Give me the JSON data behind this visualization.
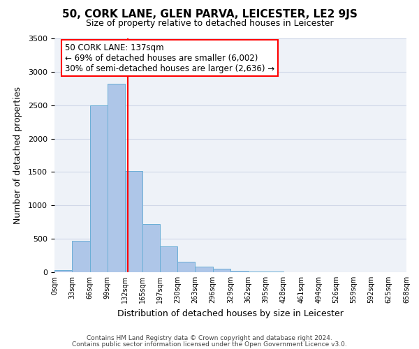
{
  "title1": "50, CORK LANE, GLEN PARVA, LEICESTER, LE2 9JS",
  "title2": "Size of property relative to detached houses in Leicester",
  "xlabel": "Distribution of detached houses by size in Leicester",
  "ylabel": "Number of detached properties",
  "bin_edges": [
    0,
    33,
    66,
    99,
    132,
    165,
    197,
    230,
    263,
    296,
    329,
    362,
    395,
    428,
    461,
    494,
    526,
    559,
    592,
    625,
    658
  ],
  "bin_labels": [
    "0sqm",
    "33sqm",
    "66sqm",
    "99sqm",
    "132sqm",
    "165sqm",
    "197sqm",
    "230sqm",
    "263sqm",
    "296sqm",
    "329sqm",
    "362sqm",
    "395sqm",
    "428sqm",
    "461sqm",
    "494sqm",
    "526sqm",
    "559sqm",
    "592sqm",
    "625sqm",
    "658sqm"
  ],
  "bar_heights": [
    30,
    470,
    2500,
    2820,
    1510,
    720,
    390,
    155,
    80,
    50,
    25,
    15,
    10,
    5,
    0,
    0,
    0,
    0,
    0,
    0
  ],
  "bar_color": "#aec6e8",
  "bar_edge_color": "#6aaed6",
  "vline_x": 137,
  "vline_color": "red",
  "annotation_line1": "50 CORK LANE: 137sqm",
  "annotation_line2": "← 69% of detached houses are smaller (6,002)",
  "annotation_line3": "30% of semi-detached houses are larger (2,636) →",
  "annotation_box_color": "white",
  "annotation_box_edge_color": "red",
  "ylim": [
    0,
    3500
  ],
  "yticks": [
    0,
    500,
    1000,
    1500,
    2000,
    2500,
    3000,
    3500
  ],
  "grid_color": "#d0d8e8",
  "bg_color": "#eef2f8",
  "footer1": "Contains HM Land Registry data © Crown copyright and database right 2024.",
  "footer2": "Contains public sector information licensed under the Open Government Licence v3.0."
}
